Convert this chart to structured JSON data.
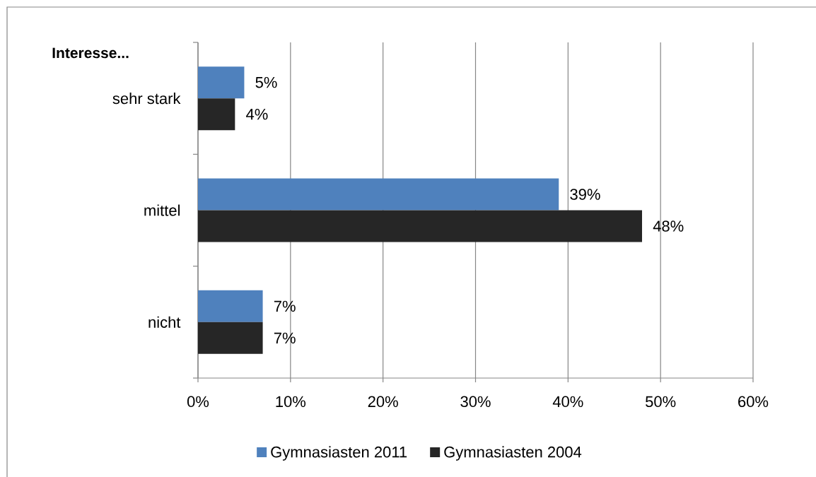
{
  "chart_data": {
    "type": "bar",
    "orientation": "horizontal",
    "annotations": [
      "Interesse..."
    ],
    "categories": [
      "sehr stark",
      "mittel",
      "nicht"
    ],
    "series": [
      {
        "name": "Gymnasiasten 2011",
        "color": "#4f81bd",
        "values": [
          5,
          39,
          7
        ],
        "value_labels": [
          "5%",
          "39%",
          "7%"
        ]
      },
      {
        "name": "Gymnasiasten 2004",
        "color": "#262626",
        "values": [
          4,
          48,
          7
        ],
        "value_labels": [
          "4%",
          "48%",
          "7%"
        ]
      }
    ],
    "xlim": [
      0,
      60
    ],
    "xticks": [
      {
        "value": 0,
        "label": "0%"
      },
      {
        "value": 10,
        "label": "10%"
      },
      {
        "value": 20,
        "label": "20%"
      },
      {
        "value": 30,
        "label": "30%"
      },
      {
        "value": 40,
        "label": "40%"
      },
      {
        "value": 50,
        "label": "50%"
      },
      {
        "value": 60,
        "label": "60%"
      }
    ],
    "grid": "x",
    "legend": "bottom"
  }
}
